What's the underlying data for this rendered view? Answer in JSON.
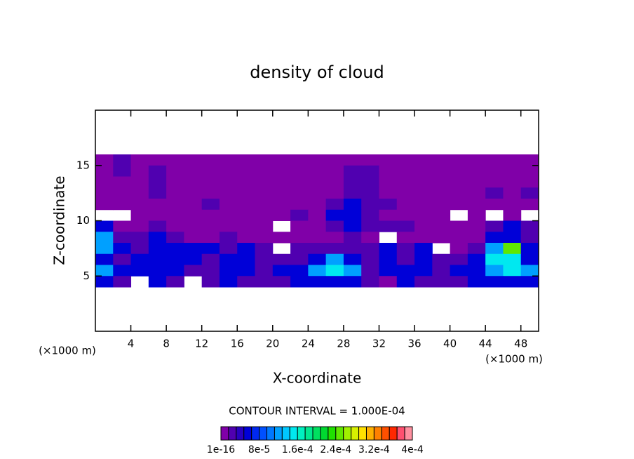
{
  "chart_data": {
    "type": "contour",
    "title": "density of cloud",
    "xlabel": "X-coordinate",
    "ylabel": "Z-coordinate",
    "xunits": "(×1000 m)",
    "yunits": "(×1000 m)",
    "note": "CONTOUR INTERVAL = 1.000E-04",
    "xlim": [
      0,
      50
    ],
    "xticks": [
      4,
      8,
      12,
      16,
      20,
      24,
      28,
      32,
      36,
      40,
      44,
      48
    ],
    "ylim": [
      0,
      20
    ],
    "yticks": [
      5,
      10,
      15
    ],
    "x": [
      1,
      3,
      5,
      7,
      9,
      11,
      13,
      15,
      17,
      19,
      21,
      23,
      25,
      27,
      29,
      31,
      33,
      35,
      37,
      39,
      41,
      43,
      45,
      47,
      49
    ],
    "z": [
      15.5,
      14.5,
      13.5,
      12.5,
      11.5,
      10.5,
      9.5,
      8.5,
      7.5,
      6.5,
      5.5,
      4.5
    ],
    "values": [
      [
        1e-05,
        2.5e-05,
        1e-05,
        1e-05,
        1e-05,
        1e-05,
        1e-05,
        1e-05,
        1e-05,
        1e-05,
        1e-05,
        1e-05,
        1e-05,
        1e-05,
        1e-05,
        1e-05,
        1e-05,
        1e-05,
        1e-05,
        1e-05,
        1e-05,
        1e-05,
        1e-05,
        1e-05,
        1e-05
      ],
      [
        1e-05,
        2.5e-05,
        1e-05,
        2.5e-05,
        1e-05,
        1e-05,
        1e-05,
        1e-05,
        1e-05,
        1e-05,
        1e-05,
        1e-05,
        1e-05,
        1e-05,
        2.5e-05,
        2.5e-05,
        1e-05,
        1e-05,
        1e-05,
        1e-05,
        1e-05,
        1e-05,
        1e-05,
        1e-05,
        1e-05
      ],
      [
        1e-05,
        1e-05,
        1e-05,
        2.5e-05,
        1e-05,
        1e-05,
        1e-05,
        1e-05,
        1e-05,
        1e-05,
        1e-05,
        1e-05,
        1e-05,
        1e-05,
        2.5e-05,
        2.5e-05,
        1e-05,
        1e-05,
        1e-05,
        1e-05,
        1e-05,
        1e-05,
        1e-05,
        1e-05,
        1e-05
      ],
      [
        1e-05,
        1e-05,
        1e-05,
        2.5e-05,
        1e-05,
        1e-05,
        1e-05,
        1e-05,
        1e-05,
        1e-05,
        1e-05,
        1e-05,
        1e-05,
        1e-05,
        2.5e-05,
        2.5e-05,
        1e-05,
        1e-05,
        1e-05,
        1e-05,
        1e-05,
        1e-05,
        2.5e-05,
        1e-05,
        2.5e-05
      ],
      [
        1e-05,
        1e-05,
        1e-05,
        1e-05,
        1e-05,
        1e-05,
        2.5e-05,
        1e-05,
        1e-05,
        1e-05,
        1e-05,
        1e-05,
        1e-05,
        2.5e-05,
        6e-05,
        2.5e-05,
        2.5e-05,
        1e-05,
        1e-05,
        1e-05,
        1e-05,
        1e-05,
        1e-05,
        1e-05,
        1e-05
      ],
      [
        null,
        null,
        1e-05,
        1e-05,
        1e-05,
        1e-05,
        1e-05,
        1e-05,
        1e-05,
        1e-05,
        1e-05,
        2.5e-05,
        1e-05,
        6e-05,
        6e-05,
        2.5e-05,
        1e-05,
        1e-05,
        1e-05,
        1e-05,
        null,
        1e-05,
        null,
        1e-05,
        null
      ],
      [
        6e-05,
        1e-05,
        1e-05,
        2.5e-05,
        1e-05,
        1e-05,
        1e-05,
        1e-05,
        1e-05,
        1e-05,
        null,
        1e-05,
        1e-05,
        2.5e-05,
        6e-05,
        2.5e-05,
        2.5e-05,
        2.5e-05,
        1e-05,
        1e-05,
        1e-05,
        1e-05,
        2.5e-05,
        6e-05,
        2.5e-05
      ],
      [
        0.00012,
        2.5e-05,
        2.5e-05,
        6e-05,
        2.5e-05,
        1e-05,
        1e-05,
        2.5e-05,
        1e-05,
        1e-05,
        1e-05,
        1e-05,
        1e-05,
        1e-05,
        2.5e-05,
        1e-05,
        null,
        1e-05,
        1e-05,
        1e-05,
        1e-05,
        1e-05,
        6e-05,
        6e-05,
        2.5e-05
      ],
      [
        0.00012,
        6e-05,
        2.5e-05,
        6e-05,
        6e-05,
        6e-05,
        6e-05,
        2.5e-05,
        6e-05,
        2.5e-05,
        null,
        2.5e-05,
        2.5e-05,
        2.5e-05,
        2.5e-05,
        2.5e-05,
        6e-05,
        2.5e-05,
        6e-05,
        null,
        1e-05,
        2.5e-05,
        0.00012,
        0.00025,
        6e-05
      ],
      [
        6e-05,
        2.5e-05,
        6e-05,
        6e-05,
        6e-05,
        6e-05,
        2.5e-05,
        6e-05,
        6e-05,
        2.5e-05,
        2.5e-05,
        2.5e-05,
        6e-05,
        0.00012,
        6e-05,
        2.5e-05,
        6e-05,
        2.5e-05,
        6e-05,
        2.5e-05,
        2.5e-05,
        6e-05,
        0.00016,
        0.00016,
        6e-05
      ],
      [
        0.00012,
        6e-05,
        6e-05,
        6e-05,
        6e-05,
        2.5e-05,
        2.5e-05,
        6e-05,
        6e-05,
        2.5e-05,
        6e-05,
        6e-05,
        0.00012,
        0.00016,
        0.00012,
        2.5e-05,
        6e-05,
        6e-05,
        6e-05,
        2.5e-05,
        6e-05,
        6e-05,
        0.00012,
        0.00016,
        0.00012
      ],
      [
        6e-05,
        2.5e-05,
        null,
        6e-05,
        2.5e-05,
        null,
        2.5e-05,
        6e-05,
        2.5e-05,
        2.5e-05,
        2.5e-05,
        6e-05,
        6e-05,
        6e-05,
        6e-05,
        2.5e-05,
        1e-05,
        6e-05,
        2.5e-05,
        2.5e-05,
        2.5e-05,
        6e-05,
        6e-05,
        6e-05,
        6e-05
      ]
    ],
    "colorbar": {
      "colors": [
        "#8000a8",
        "#5000b0",
        "#2800c0",
        "#0000d8",
        "#0028f0",
        "#0050ff",
        "#0078ff",
        "#00a0ff",
        "#00c8ff",
        "#00e8f0",
        "#00f0c0",
        "#00e890",
        "#00e060",
        "#00d830",
        "#20e000",
        "#60e800",
        "#a0f000",
        "#d8f000",
        "#ffe000",
        "#ffb000",
        "#ff8000",
        "#ff5000",
        "#ff2800",
        "#ff5070",
        "#ff90a0"
      ],
      "ticks": [
        1e-16,
        {
          "value": 8e-05,
          "label": "8e-5"
        },
        {
          "value": 0.00016,
          "label": "1.6e-4"
        },
        {
          "value": 0.00024,
          "label": "2.4e-4"
        },
        {
          "value": 0.00032,
          "label": "3.2e-4"
        },
        {
          "value": 0.0004,
          "label": "4e-4"
        }
      ]
    }
  }
}
